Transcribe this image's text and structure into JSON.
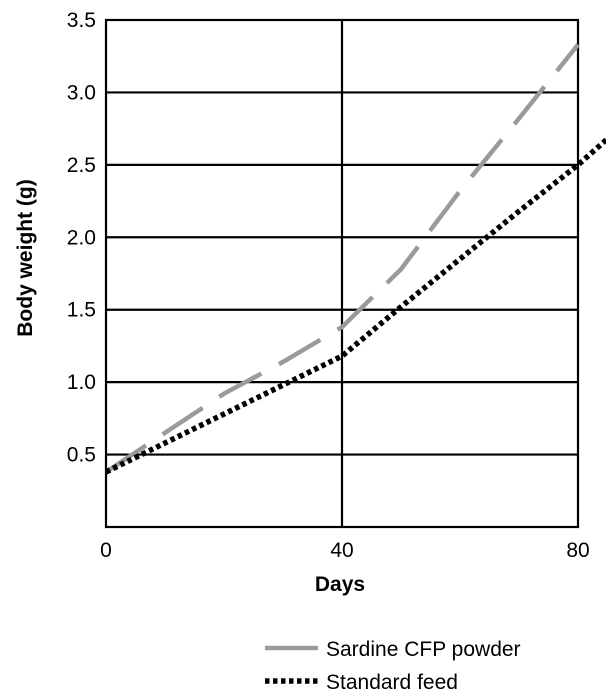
{
  "chart_data": {
    "type": "line",
    "title": "",
    "xlabel": "Days",
    "ylabel": "Body weight (g)",
    "xlim": [
      0,
      80
    ],
    "ylim": [
      0,
      3.5
    ],
    "x_ticks": [
      {
        "value": 0,
        "label": "0"
      },
      {
        "value": 40,
        "label": "40"
      },
      {
        "value": 80,
        "label": "80"
      }
    ],
    "y_ticks": [
      {
        "value": 0.5,
        "label": "0.5"
      },
      {
        "value": 1.0,
        "label": "1.0"
      },
      {
        "value": 1.5,
        "label": "1.5"
      },
      {
        "value": 2.0,
        "label": "2.0"
      },
      {
        "value": 2.5,
        "label": "2.5"
      },
      {
        "value": 3.0,
        "label": "3.0"
      },
      {
        "value": 3.5,
        "label": "3.5"
      }
    ],
    "grid": true,
    "legend_position": "bottom-right, below plot",
    "series": [
      {
        "name": "Sardine CFP powder",
        "color": "#9a9a9a",
        "line_style": "long-dash",
        "points": [
          [
            0,
            0.38
          ],
          [
            10,
            0.65
          ],
          [
            20,
            0.92
          ],
          [
            30,
            1.14
          ],
          [
            40,
            1.38
          ],
          [
            50,
            1.78
          ],
          [
            60,
            2.32
          ],
          [
            70,
            2.82
          ],
          [
            80,
            3.33
          ]
        ]
      },
      {
        "name": "Standard feed",
        "color": "#000000",
        "line_style": "dotted",
        "points": [
          [
            0,
            0.38
          ],
          [
            20,
            0.78
          ],
          [
            40,
            1.18
          ],
          [
            50,
            1.52
          ],
          [
            60,
            1.85
          ],
          [
            70,
            2.18
          ],
          [
            80,
            2.5
          ],
          [
            85,
            2.68
          ]
        ]
      }
    ]
  }
}
